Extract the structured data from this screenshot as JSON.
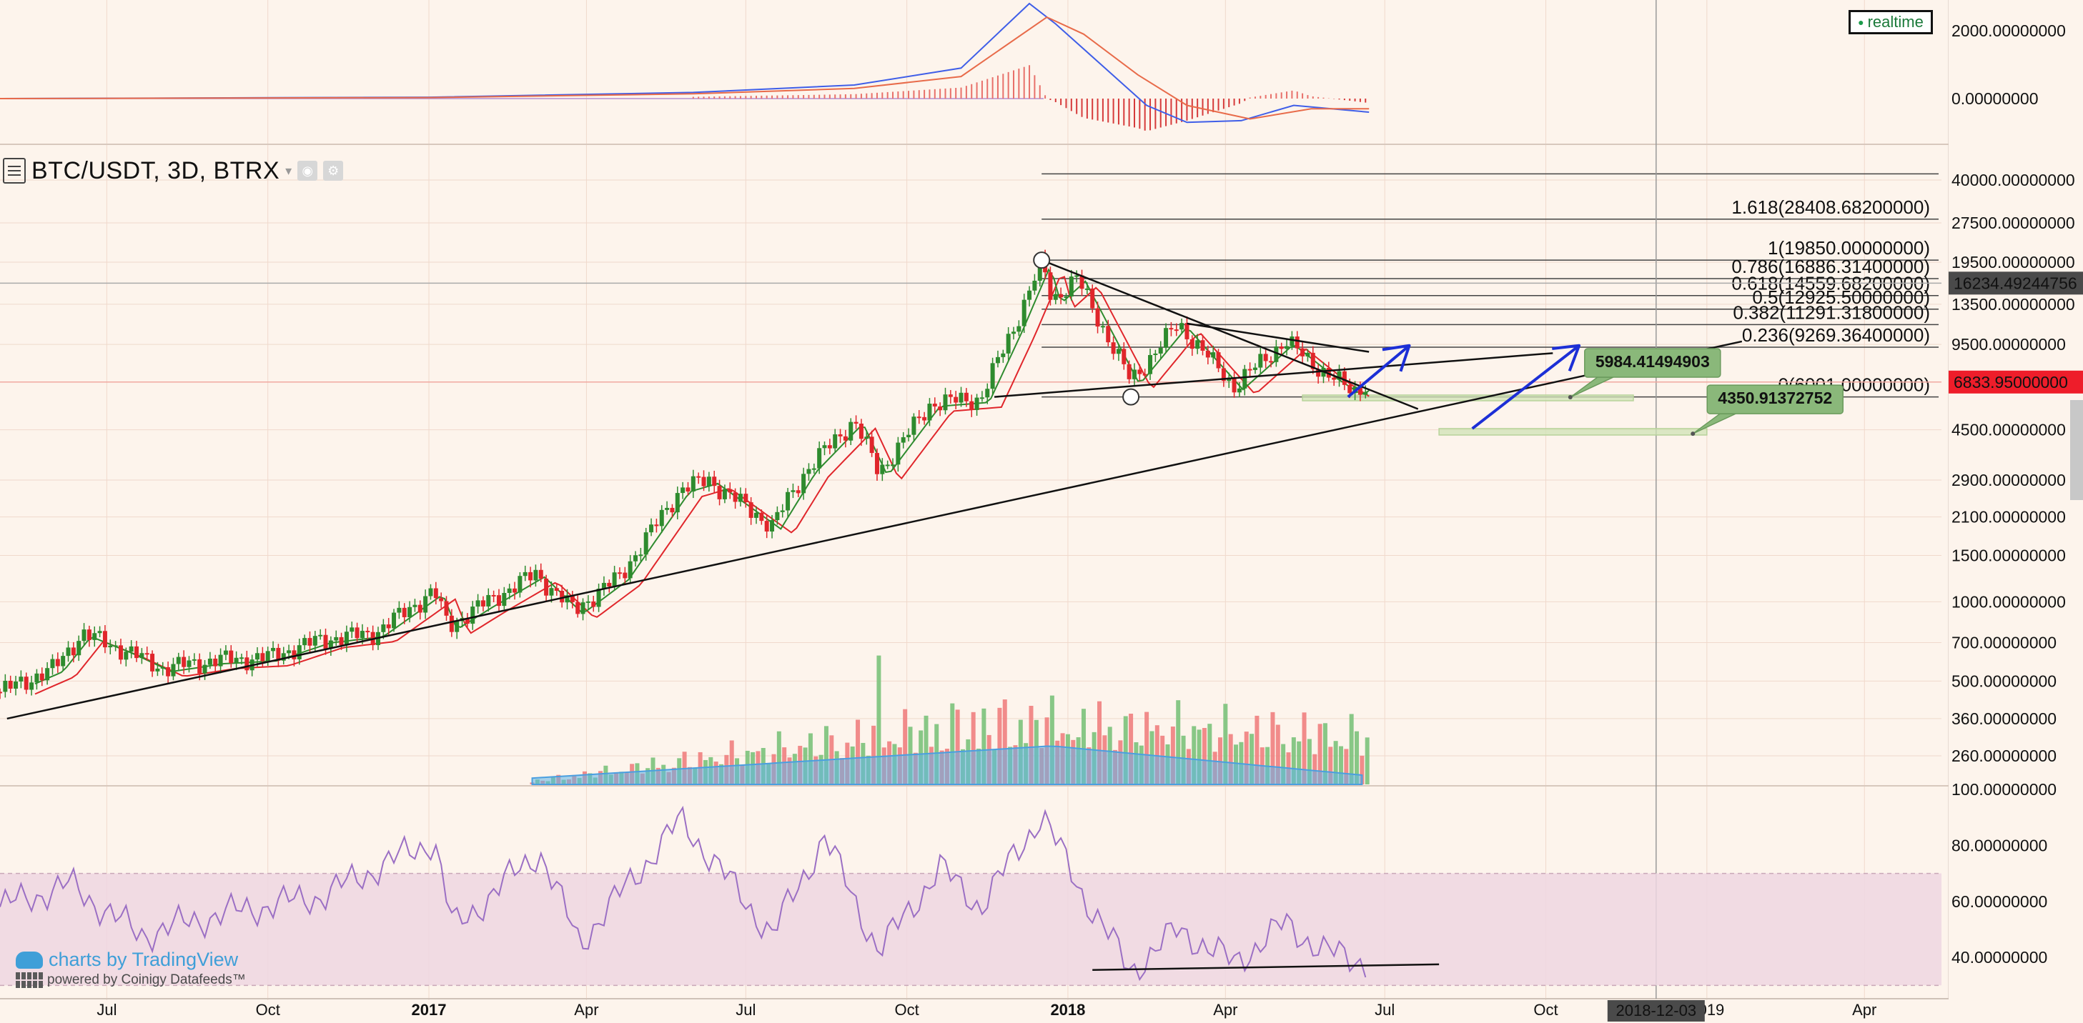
{
  "symbol": {
    "title": "BTC/USDT, 3D, BTRX",
    "caret": "▾"
  },
  "realtime_label": "realtime",
  "watermark": {
    "line1": "charts by TradingView",
    "line2": "powered by Coinigy Datafeeds™"
  },
  "colors": {
    "background": "#fdf4ec",
    "bull": "#2e8b2e",
    "bear": "#e0262b",
    "trendline": "#111111",
    "arrow": "#1c2fd6",
    "zone": "#cfe3b6",
    "callout": "#8ab87a",
    "rsi_band": "#efd6e2",
    "rsi_line": "#9b6fc4",
    "macd_line": "#3f5ee8",
    "signal_line": "#e86b4a",
    "volume_ma": "#5fb2e8"
  },
  "chart_data": [
    {
      "type": "candlestick",
      "symbol": "BTC/USDT",
      "interval": "3D",
      "exchange": "BTRX",
      "scale": "log",
      "y_tick_labels": [
        "40000.00000000",
        "27500.00000000",
        "19500.00000000",
        "13500.00000000",
        "9500.00000000",
        "4500.00000000",
        "2900.00000000",
        "2100.00000000",
        "1500.00000000",
        "1000.00000000",
        "700.00000000",
        "500.00000000",
        "360.00000000",
        "260.00000000"
      ],
      "y_tick_values": [
        40000,
        27500,
        19500,
        13500,
        9500,
        4500,
        2900,
        2100,
        1500,
        1000,
        700,
        500,
        360,
        260
      ],
      "x_tick_labels": [
        "Jul",
        "Oct",
        "2017",
        "Apr",
        "Jul",
        "Oct",
        "2018",
        "Apr",
        "Jul",
        "Oct",
        "2019",
        "Apr"
      ],
      "x_tick_dates": [
        "2016-07-01",
        "2016-10-01",
        "2017-01-01",
        "2017-04-01",
        "2017-07-01",
        "2017-10-01",
        "2018-01-01",
        "2018-04-01",
        "2018-07-01",
        "2018-10-01",
        "2019-01-01",
        "2019-04-01"
      ],
      "bold_x_labels": [
        "2017",
        "2018"
      ],
      "date_range": [
        "2016-05-01",
        "2019-05-15"
      ],
      "price_range": [
        200,
        52000
      ],
      "crosshair": {
        "date_label": "2018-12-03",
        "date": "2018-12-03",
        "price_label": "16234.49244756",
        "price": 16234.49244756
      },
      "last_price": {
        "label": "6833.95000000",
        "value": 6833.95
      },
      "price_path": [
        [
          "2016-05-01",
          455
        ],
        [
          "2016-06-01",
          560
        ],
        [
          "2016-06-17",
          760
        ],
        [
          "2016-07-10",
          660
        ],
        [
          "2016-08-02",
          560
        ],
        [
          "2016-09-01",
          600
        ],
        [
          "2016-10-01",
          615
        ],
        [
          "2016-11-01",
          720
        ],
        [
          "2016-12-01",
          760
        ],
        [
          "2017-01-04",
          1100
        ],
        [
          "2017-01-12",
          810
        ],
        [
          "2017-02-01",
          980
        ],
        [
          "2017-03-03",
          1280
        ],
        [
          "2017-03-25",
          930
        ],
        [
          "2017-04-20",
          1250
        ],
        [
          "2017-05-25",
          2700
        ],
        [
          "2017-06-10",
          2900
        ],
        [
          "2017-07-16",
          1950
        ],
        [
          "2017-08-05",
          3200
        ],
        [
          "2017-09-01",
          4900
        ],
        [
          "2017-09-15",
          3100
        ],
        [
          "2017-10-15",
          5700
        ],
        [
          "2017-11-12",
          5900
        ],
        [
          "2017-12-01",
          11000
        ],
        [
          "2017-12-17",
          19500
        ],
        [
          "2017-12-23",
          14000
        ],
        [
          "2018-01-06",
          17000
        ],
        [
          "2018-02-06",
          6900
        ],
        [
          "2018-03-05",
          11400
        ],
        [
          "2018-03-25",
          8100
        ],
        [
          "2018-04-06",
          6600
        ],
        [
          "2018-05-05",
          9800
        ],
        [
          "2018-05-28",
          7400
        ],
        [
          "2018-06-13",
          6300
        ],
        [
          "2018-06-22",
          6834
        ]
      ],
      "moving_averages": [
        {
          "color": "green",
          "period": "fast"
        },
        {
          "color": "red",
          "period": "slow"
        }
      ],
      "fibonacci": {
        "levels": [
          {
            "label": "1.618(28408.68200000)",
            "ratio": 1.618,
            "price": 28408.682
          },
          {
            "label": "1(19850.00000000)",
            "ratio": 1,
            "price": 19850
          },
          {
            "label": "0.786(16886.31400000)",
            "ratio": 0.786,
            "price": 16886.314
          },
          {
            "label": "0.618(14559.68200000)",
            "ratio": 0.618,
            "price": 14559.682
          },
          {
            "label": "0.5(12925.50000000)",
            "ratio": 0.5,
            "price": 12925.5
          },
          {
            "label": "0.382(11291.31800000)",
            "ratio": 0.382,
            "price": 11291.318
          },
          {
            "label": "0.236(9269.36400000)",
            "ratio": 0.236,
            "price": 9269.364
          },
          {
            "label": "0(6001.00000000)",
            "ratio": 0,
            "price": 6001
          }
        ],
        "extra_level_price": 42200
      },
      "annotations": [
        {
          "type": "callout",
          "label": "5984.41494903",
          "value": 5984.41494903,
          "anchor_date": "2018-10-15"
        },
        {
          "type": "callout",
          "label": "4350.91372752",
          "value": 4350.91372752,
          "anchor_date": "2018-12-24"
        }
      ],
      "support_zones": [
        {
          "from_date": "2018-05-15",
          "to_date": "2018-11-20",
          "low": 5850,
          "high": 6100
        },
        {
          "from_date": "2018-08-01",
          "to_date": "2019-01-01",
          "low": 4300,
          "high": 4550
        }
      ],
      "trendlines": [
        {
          "from": [
            "2016-05-05",
            360
          ],
          "to": [
            "2019-01-21",
            9750
          ]
        },
        {
          "from": [
            "2017-12-17",
            19850
          ],
          "to": [
            "2018-07-20",
            5400
          ]
        },
        {
          "from": [
            "2017-11-20",
            6001
          ],
          "to": [
            "2018-10-05",
            8800
          ]
        },
        {
          "from": [
            "2018-03-10",
            11400
          ],
          "to": [
            "2018-06-22",
            8900
          ]
        }
      ],
      "arrows": [
        {
          "from": [
            "2018-06-10",
            6000
          ],
          "to": [
            "2018-07-15",
            9400
          ]
        },
        {
          "from": [
            "2018-08-20",
            4550
          ],
          "to": [
            "2018-10-20",
            9400
          ]
        }
      ],
      "pivots": [
        {
          "date": "2017-12-17",
          "price": 19850
        },
        {
          "date": "2018-02-06",
          "price": 6001
        }
      ]
    },
    {
      "type": "bar",
      "name": "Volume",
      "notes": "volume histogram with moving average area, overlaid at bottom of price pane",
      "peaks": [
        [
          "2017-09-15",
          0.82
        ],
        [
          "2017-12-10",
          0.5
        ],
        [
          "2018-02-06",
          0.45
        ],
        [
          "2018-01-06",
          0.3
        ],
        [
          "2018-04-05",
          0.32
        ]
      ]
    },
    {
      "type": "line",
      "name": "MACD",
      "y_tick_labels": [
        "2000.00000000",
        "0.00000000"
      ],
      "y_tick_values": [
        2000,
        0
      ],
      "y_range": [
        -1200,
        2800
      ],
      "macd_path": [
        [
          "2016-05-01",
          0
        ],
        [
          "2017-01-01",
          40
        ],
        [
          "2017-06-01",
          180
        ],
        [
          "2017-09-01",
          400
        ],
        [
          "2017-11-01",
          900
        ],
        [
          "2017-12-10",
          2800
        ],
        [
          "2017-12-25",
          2200
        ],
        [
          "2018-01-20",
          1000
        ],
        [
          "2018-02-15",
          -200
        ],
        [
          "2018-03-10",
          -700
        ],
        [
          "2018-04-10",
          -650
        ],
        [
          "2018-05-10",
          -200
        ],
        [
          "2018-06-22",
          -400
        ]
      ],
      "signal_path": [
        [
          "2016-05-01",
          0
        ],
        [
          "2017-01-01",
          30
        ],
        [
          "2017-06-01",
          140
        ],
        [
          "2017-09-01",
          300
        ],
        [
          "2017-11-01",
          650
        ],
        [
          "2017-12-20",
          2400
        ],
        [
          "2018-01-10",
          1900
        ],
        [
          "2018-02-10",
          700
        ],
        [
          "2018-03-10",
          -200
        ],
        [
          "2018-04-15",
          -600
        ],
        [
          "2018-05-20",
          -300
        ],
        [
          "2018-06-22",
          -300
        ]
      ]
    },
    {
      "type": "line",
      "name": "RSI",
      "y_tick_labels": [
        "100.00000000",
        "80.00000000",
        "60.00000000",
        "40.00000000"
      ],
      "y_tick_values": [
        100,
        80,
        60,
        40
      ],
      "y_range": [
        26,
        100
      ],
      "band": [
        30,
        70
      ],
      "rsi_path": [
        [
          "2016-05-01",
          58
        ],
        [
          "2016-06-10",
          66
        ],
        [
          "2016-07-20",
          48
        ],
        [
          "2016-09-01",
          55
        ],
        [
          "2016-11-01",
          62
        ],
        [
          "2017-01-04",
          82
        ],
        [
          "2017-01-15",
          50
        ],
        [
          "2017-03-05",
          78
        ],
        [
          "2017-03-28",
          45
        ],
        [
          "2017-05-25",
          89
        ],
        [
          "2017-07-16",
          48
        ],
        [
          "2017-08-15",
          83
        ],
        [
          "2017-09-15",
          42
        ],
        [
          "2017-10-20",
          72
        ],
        [
          "2017-11-12",
          58
        ],
        [
          "2017-12-17",
          91
        ],
        [
          "2018-01-10",
          62
        ],
        [
          "2018-02-06",
          35
        ],
        [
          "2018-03-05",
          50
        ],
        [
          "2018-04-06",
          38
        ],
        [
          "2018-05-05",
          52
        ],
        [
          "2018-05-28",
          42
        ],
        [
          "2018-06-22",
          38
        ]
      ],
      "divergence_line": {
        "from": [
          "2018-01-15",
          35.5
        ],
        "to": [
          "2018-08-01",
          37.5
        ]
      }
    }
  ]
}
